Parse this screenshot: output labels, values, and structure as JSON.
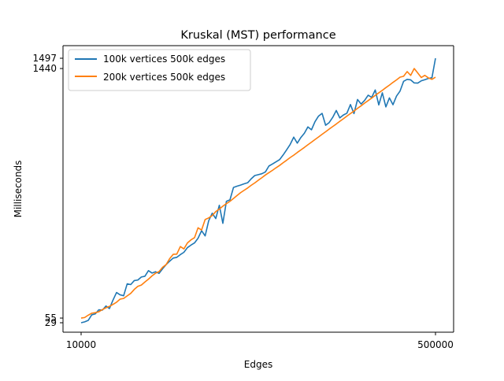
{
  "chart_data": {
    "type": "line",
    "title": "Kruskal (MST) performance",
    "xlabel": "Edges",
    "ylabel": "Milliseconds",
    "xlim": [
      10000,
      500000
    ],
    "ylim": [
      29,
      1497
    ],
    "x_ticks": [
      {
        "value": 10000,
        "label": "10000"
      },
      {
        "value": 500000,
        "label": "500000"
      }
    ],
    "y_ticks": [
      {
        "value": 29,
        "label": "29"
      },
      {
        "value": 55,
        "label": "55"
      },
      {
        "value": 1440,
        "label": "1440"
      },
      {
        "value": 1497,
        "label": "1497"
      }
    ],
    "grid": false,
    "legend_position": "top-left",
    "x_start": 10000,
    "x_end": 500000,
    "series": [
      {
        "name": "100k vertices 500k edges",
        "color": "#1f77b4",
        "values": [
          29,
          34,
          42,
          73,
          78,
          101,
          99,
          122,
          108,
          155,
          197,
          184,
          179,
          245,
          241,
          263,
          266,
          283,
          287,
          318,
          305,
          312,
          303,
          329,
          352,
          371,
          388,
          392,
          407,
          420,
          446,
          460,
          472,
          498,
          540,
          511,
          595,
          637,
          607,
          681,
          581,
          703,
          711,
          780,
          787,
          793,
          800,
          806,
          828,
          846,
          851,
          856,
          866,
          899,
          910,
          922,
          934,
          960,
          989,
          1019,
          1059,
          1026,
          1057,
          1081,
          1116,
          1100,
          1145,
          1176,
          1191,
          1125,
          1140,
          1169,
          1207,
          1166,
          1182,
          1192,
          1240,
          1190,
          1268,
          1243,
          1263,
          1292,
          1280,
          1321,
          1238,
          1305,
          1227,
          1277,
          1239,
          1287,
          1315,
          1369,
          1380,
          1377,
          1360,
          1359,
          1372,
          1378,
          1385,
          1389,
          1497
        ]
      },
      {
        "name": "200k vertices 500k edges",
        "color": "#ff7f0e",
        "values": [
          55,
          58,
          71,
          82,
          85,
          90,
          102,
          112,
          120,
          131,
          143,
          160,
          164,
          178,
          192,
          214,
          231,
          238,
          255,
          271,
          289,
          304,
          313,
          337,
          352,
          385,
          409,
          410,
          452,
          439,
          472,
          489,
          501,
          556,
          544,
          602,
          611,
          624,
          646,
          660,
          676,
          690,
          703,
          719,
          735,
          751,
          764,
          777,
          792,
          805,
          820,
          834,
          849,
          862,
          875,
          889,
          902,
          917,
          931,
          946,
          959,
          974,
          988,
          1002,
          1017,
          1031,
          1046,
          1060,
          1075,
          1089,
          1104,
          1118,
          1132,
          1147,
          1161,
          1176,
          1190,
          1204,
          1219,
          1233,
          1248,
          1262,
          1276,
          1291,
          1305,
          1319,
          1334,
          1348,
          1363,
          1377,
          1392,
          1397,
          1423,
          1402,
          1440,
          1415,
          1390,
          1402,
          1388,
          1380,
          1392
        ]
      }
    ]
  }
}
